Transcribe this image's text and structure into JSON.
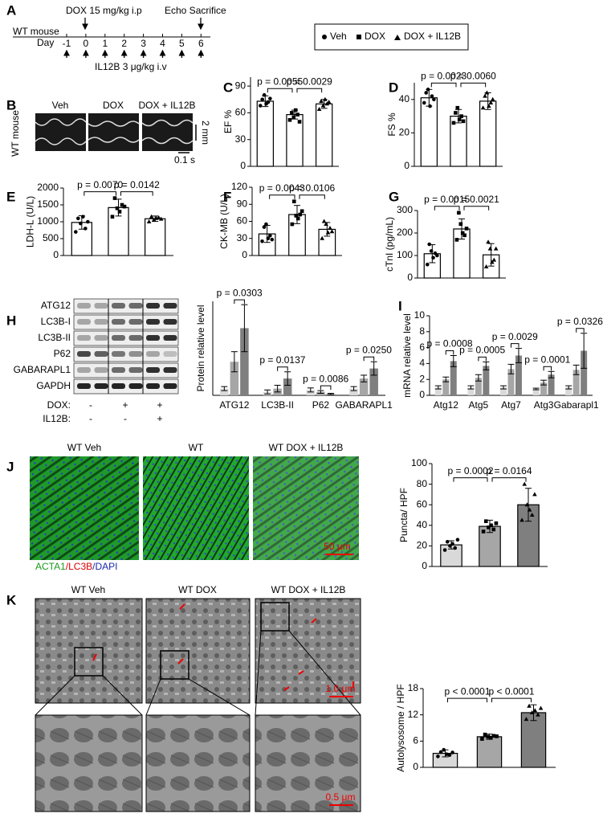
{
  "timeline": {
    "panel": "A",
    "subject": "WT mouse",
    "day_label": "Day",
    "days": [
      -1,
      0,
      1,
      2,
      3,
      4,
      5,
      6
    ],
    "dox": "DOX 15 mg/kg i.p",
    "end": "Echo Sacrifice",
    "il12b": "IL12B 3 μg/kg i.v"
  },
  "legend": [
    "Veh",
    "DOX",
    "DOX + IL12B"
  ],
  "echo": {
    "panel": "B",
    "labels": [
      "Veh",
      "DOX",
      "DOX + IL12B"
    ],
    "subject": "WT mouse",
    "scale_y": "2 mm",
    "scale_x": "0.1 s"
  },
  "blot": {
    "panel": "H",
    "bands": [
      "ATG12",
      "LC3B-I",
      "LC3B-II",
      "P62",
      "GABARAPL1",
      "GAPDH"
    ],
    "rows": [
      {
        "label": "DOX:",
        "signs": [
          "-",
          "+",
          "+"
        ]
      },
      {
        "label": "IL12B:",
        "signs": [
          "-",
          "-",
          "+"
        ]
      }
    ]
  },
  "fluorescence": {
    "panel": "J",
    "labels": [
      "WT Veh",
      "WT",
      "WT DOX + IL12B"
    ],
    "stain": [
      "ACTA1",
      "/LC3B",
      "/DAPI"
    ],
    "scale": "50 μm"
  },
  "tem": {
    "panel": "K",
    "labels": [
      "WT Veh",
      "WT DOX",
      "WT DOX + IL12B"
    ],
    "scale_top": "1.0 μm",
    "scale_bottom": "0.5 μm"
  },
  "chart_data": [
    {
      "type": "bar",
      "panel": "C",
      "ylabel": "EF %",
      "ylim": [
        0,
        100
      ],
      "yticks": [
        0,
        30,
        60,
        90
      ],
      "values": [
        73,
        58,
        70
      ],
      "errors": [
        6,
        5,
        5
      ],
      "colors": [
        "#ffffff",
        "#ffffff",
        "#ffffff"
      ],
      "points": [
        [
          68,
          75,
          80,
          70,
          72,
          76
        ],
        [
          52,
          60,
          55,
          63,
          58,
          50
        ],
        [
          64,
          73,
          68,
          75,
          70,
          72
        ]
      ],
      "annotations": [
        "p = 0.0055",
        "p = 0.0029"
      ]
    },
    {
      "type": "bar",
      "panel": "D",
      "ylabel": "FS %",
      "ylim": [
        0,
        50
      ],
      "yticks": [
        0,
        20,
        40
      ],
      "values": [
        41,
        30,
        39
      ],
      "errors": [
        5,
        4,
        5
      ],
      "colors": [
        "#ffffff",
        "#ffffff",
        "#ffffff"
      ],
      "points": [
        [
          38,
          44,
          46,
          36,
          42,
          40
        ],
        [
          26,
          32,
          35,
          28,
          30,
          27
        ],
        [
          35,
          42,
          44,
          36,
          38,
          40
        ]
      ],
      "annotations": [
        "p = 0.0023",
        "p = 0.0060"
      ]
    },
    {
      "type": "bar",
      "panel": "E",
      "ylabel": "LDH-L (U/L)",
      "ylim": [
        0,
        2000
      ],
      "yticks": [
        0,
        500,
        1000,
        1500,
        2000
      ],
      "values": [
        980,
        1420,
        1090
      ],
      "errors": [
        200,
        250,
        80
      ],
      "colors": [
        "#ffffff",
        "#ffffff",
        "#ffffff"
      ],
      "points": [
        [
          700,
          1100,
          950,
          1150,
          800,
          1000
        ],
        [
          1150,
          1700,
          1400,
          1300,
          1500,
          1450
        ],
        [
          1000,
          1150,
          1050,
          1100,
          1120,
          1080
        ]
      ],
      "annotations": [
        "p = 0.0070",
        "p = 0.0142"
      ]
    },
    {
      "type": "bar",
      "panel": "F",
      "ylabel": "CK-MB (U/L)",
      "ylim": [
        0,
        120
      ],
      "yticks": [
        0,
        30,
        60,
        90,
        120
      ],
      "values": [
        38,
        72,
        46
      ],
      "errors": [
        15,
        16,
        12
      ],
      "colors": [
        "#ffffff",
        "#ffffff",
        "#ffffff"
      ],
      "points": [
        [
          25,
          50,
          55,
          30,
          35,
          28
        ],
        [
          55,
          95,
          70,
          65,
          72,
          78
        ],
        [
          30,
          60,
          55,
          40,
          48,
          42
        ]
      ],
      "annotations": [
        "p = 0.0043",
        "p = 0.0106"
      ]
    },
    {
      "type": "bar",
      "panel": "G",
      "ylabel": "cTnI (pg/mL)",
      "ylim": [
        0,
        300
      ],
      "yticks": [
        0,
        100,
        200,
        300
      ],
      "values": [
        108,
        218,
        103
      ],
      "errors": [
        40,
        45,
        50
      ],
      "colors": [
        "#ffffff",
        "#ffffff",
        "#ffffff"
      ],
      "points": [
        [
          60,
          150,
          120,
          90,
          110,
          100
        ],
        [
          170,
          290,
          240,
          200,
          190,
          220
        ],
        [
          50,
          160,
          130,
          70,
          80,
          130
        ]
      ],
      "annotations": [
        "p = 0.0015",
        "p = 0.0021"
      ]
    },
    {
      "type": "grouped_bar",
      "ylabel": "Protein relative  level",
      "ylim": [
        0,
        14
      ],
      "categories": [
        "ATG12",
        "LC3B-II",
        "P62",
        "GABARAPL1"
      ],
      "series": [
        {
          "color": "#d9d9d9",
          "values": [
            1,
            0.5,
            0.8,
            1
          ],
          "errors": [
            0.3,
            0.3,
            0.3,
            0.3
          ]
        },
        {
          "color": "#a6a6a6",
          "values": [
            5,
            1,
            0.5,
            2.5
          ],
          "errors": [
            1.5,
            0.5,
            0.2,
            0.5
          ]
        },
        {
          "color": "#7f7f7f",
          "values": [
            10,
            2.5,
            0.2,
            4
          ],
          "errors": [
            3.5,
            1,
            0.1,
            1
          ]
        }
      ],
      "annotations": [
        "p = 0.0303",
        "p = 0.0137",
        "p = 0.0086",
        "p = 0.0250"
      ]
    },
    {
      "type": "grouped_bar",
      "panel": "I",
      "ylabel": "mRNA relative level",
      "ylim": [
        0,
        10
      ],
      "yticks": [
        0,
        2,
        4,
        6,
        8,
        10
      ],
      "categories": [
        "Atg12",
        "Atg5",
        "Atg7",
        "Atg3",
        "Gabarapl1"
      ],
      "series": [
        {
          "color": "#d9d9d9",
          "values": [
            1,
            1,
            1,
            0.8,
            1
          ],
          "errors": [
            0.2,
            0.2,
            0.2,
            0.1,
            0.2
          ]
        },
        {
          "color": "#a6a6a6",
          "values": [
            2,
            2.2,
            3.3,
            1.6,
            3.2
          ],
          "errors": [
            0.3,
            0.4,
            0.6,
            0.3,
            0.6
          ]
        },
        {
          "color": "#7f7f7f",
          "values": [
            4.3,
            3.7,
            5,
            2.6,
            5.6
          ],
          "errors": [
            0.7,
            0.5,
            0.9,
            0.4,
            2.2
          ]
        }
      ],
      "annotations": [
        "p = 0.0008",
        "p = 0.0005",
        "p = 0.0029",
        "p = 0.0001",
        "p = 0.0326"
      ]
    },
    {
      "type": "bar",
      "ylabel": "Puncta/ HPF",
      "ylim": [
        0,
        100
      ],
      "yticks": [
        0,
        20,
        40,
        60,
        80,
        100
      ],
      "values": [
        21,
        39,
        60
      ],
      "errors": [
        4,
        6,
        16
      ],
      "colors": [
        "#d9d9d9",
        "#a6a6a6",
        "#7f7f7f"
      ],
      "points": [
        [
          16,
          24,
          20,
          22,
          18,
          26
        ],
        [
          34,
          44,
          38,
          40,
          36,
          42
        ],
        [
          45,
          80,
          60,
          55,
          50,
          70
        ]
      ],
      "annotations": [
        "p = 0.0002",
        "p = 0.0164"
      ]
    },
    {
      "type": "bar",
      "ylabel": "Autolysosome / HPF",
      "ylim": [
        0,
        18
      ],
      "yticks": [
        0,
        6,
        12,
        18
      ],
      "values": [
        3.2,
        7,
        12.5
      ],
      "errors": [
        0.8,
        0.6,
        1.8
      ],
      "colors": [
        "#d9d9d9",
        "#a6a6a6",
        "#7f7f7f"
      ],
      "points": [
        [
          2.5,
          3.5,
          4,
          3,
          2.8,
          3.4
        ],
        [
          6.5,
          7.5,
          7,
          6.8,
          7.2,
          7.1
        ],
        [
          11,
          14,
          12.5,
          13,
          12,
          13.5
        ]
      ],
      "annotations": [
        "p < 0.0001",
        "p < 0.0001"
      ]
    }
  ]
}
